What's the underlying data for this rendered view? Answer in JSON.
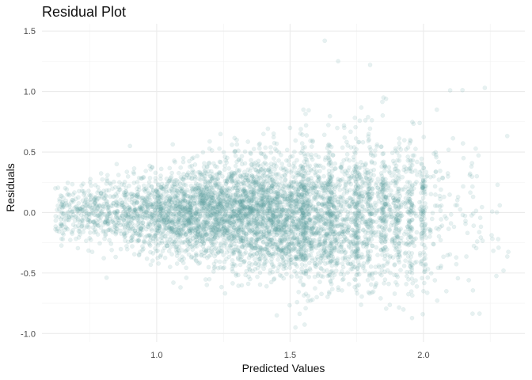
{
  "chart_data": {
    "type": "scatter",
    "title": "Residual Plot",
    "xlabel": "Predicted Values",
    "ylabel": "Residuals",
    "xlim": [
      0.57,
      2.38
    ],
    "ylim": [
      -1.07,
      1.56
    ],
    "x_ticks": [
      1.0,
      1.5,
      2.0
    ],
    "x_tick_labels": [
      "1.0",
      "1.5",
      "2.0"
    ],
    "y_ticks": [
      -1.0,
      -0.5,
      0.0,
      0.5,
      1.0,
      1.5
    ],
    "y_tick_labels": [
      "-1.0",
      "-0.5",
      "0.0",
      "0.5",
      "1.0",
      "1.5"
    ],
    "grid": true,
    "legend": "none",
    "point_color": "#5f9ea0",
    "point_opacity": 0.15,
    "sample_points": [
      [
        0.62,
        0.2
      ],
      [
        0.65,
        0.12
      ],
      [
        0.7,
        0.05
      ],
      [
        0.75,
        0.25
      ],
      [
        0.8,
        -0.1
      ],
      [
        0.85,
        0.4
      ],
      [
        0.9,
        0.55
      ],
      [
        0.95,
        -0.3
      ],
      [
        1.0,
        0.1
      ],
      [
        1.05,
        -0.45
      ],
      [
        1.1,
        0.45
      ],
      [
        1.15,
        -0.2
      ],
      [
        1.2,
        0.3
      ],
      [
        1.25,
        -0.35
      ],
      [
        1.3,
        0.6
      ],
      [
        1.35,
        -0.55
      ],
      [
        1.4,
        0.2
      ],
      [
        1.45,
        -0.85
      ],
      [
        1.5,
        0.7
      ],
      [
        1.52,
        -0.95
      ],
      [
        1.55,
        0.85
      ],
      [
        1.6,
        -0.7
      ],
      [
        1.63,
        1.42
      ],
      [
        1.68,
        1.25
      ],
      [
        1.7,
        -0.55
      ],
      [
        1.75,
        0.4
      ],
      [
        1.8,
        1.22
      ],
      [
        1.82,
        -0.45
      ],
      [
        1.85,
        0.95
      ],
      [
        1.9,
        -0.35
      ],
      [
        1.95,
        0.6
      ],
      [
        2.0,
        -0.65
      ],
      [
        2.05,
        0.85
      ],
      [
        2.1,
        1.01
      ],
      [
        2.15,
        0.45
      ],
      [
        2.2,
        0.3
      ],
      [
        2.23,
        1.03
      ],
      [
        2.28,
        -0.22
      ],
      [
        2.3,
        -0.48
      ]
    ]
  }
}
